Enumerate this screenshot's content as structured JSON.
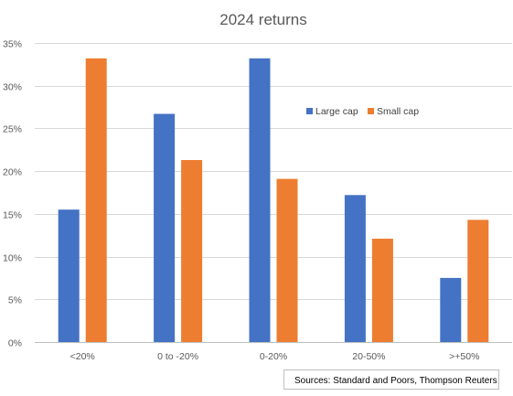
{
  "chart_data": {
    "type": "bar",
    "title": "2024 returns",
    "xlabel": "",
    "ylabel": "",
    "categories": [
      "<20%",
      "0 to -20%",
      "0-20%",
      "20-50%",
      ">+50%"
    ],
    "series": [
      {
        "name": "Large cap",
        "color": "#4472c4",
        "values": [
          15.5,
          26.7,
          33.2,
          17.2,
          7.5
        ]
      },
      {
        "name": "Small cap",
        "color": "#ed7d31",
        "values": [
          33.2,
          21.3,
          19.1,
          12.1,
          14.3
        ]
      }
    ],
    "ylim": [
      0,
      35
    ],
    "yticks": [
      "0%",
      "5%",
      "10%",
      "15%",
      "20%",
      "25%",
      "30%",
      "35%"
    ],
    "grid": true,
    "legend": "top-right"
  },
  "annotation": {
    "source": "Sources:  Standard and Poors, Thompson Reuters"
  }
}
